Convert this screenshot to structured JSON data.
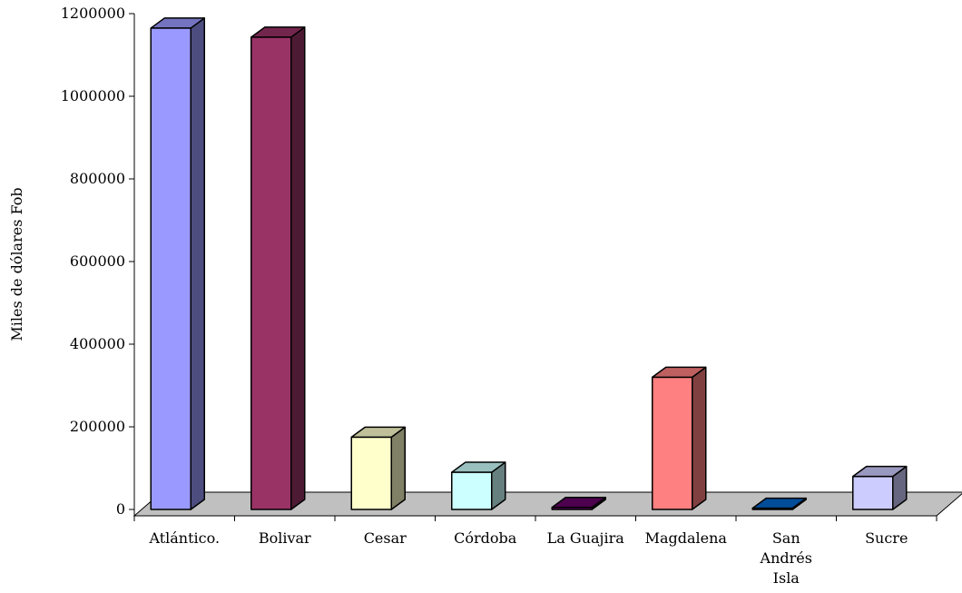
{
  "chart_data": {
    "type": "bar",
    "title": "",
    "xlabel": "",
    "ylabel": "Miles de dólares Fob",
    "ylim": [
      0,
      1200000
    ],
    "yticks": [
      "0",
      "200000",
      "400000",
      "600000",
      "800000",
      "1000000",
      "1200000"
    ],
    "grid": false,
    "legend": "none",
    "categories": [
      [
        "Atlántico."
      ],
      [
        "Bolivar"
      ],
      [
        "Cesar"
      ],
      [
        "Córdoba"
      ],
      [
        "La Guajira"
      ],
      [
        "Magdalena"
      ],
      [
        "San",
        "Andrés",
        "Isla"
      ],
      [
        "Sucre"
      ]
    ],
    "values": [
      1165000,
      1143000,
      175000,
      90000,
      5000,
      320000,
      3000,
      80000
    ],
    "colors": [
      "#9999ff",
      "#993366",
      "#ffffcc",
      "#ccffff",
      "#660066",
      "#ff8080",
      "#0066cc",
      "#ccccff"
    ],
    "floor_color": "#c0c0c0"
  }
}
